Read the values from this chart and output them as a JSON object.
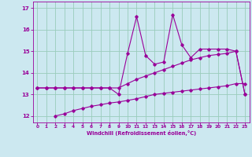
{
  "title": "",
  "xlabel": "Windchill (Refroidissement éolien,°C)",
  "ylabel": "",
  "xlim": [
    -0.5,
    23.5
  ],
  "ylim": [
    11.7,
    17.3
  ],
  "xticks": [
    0,
    1,
    2,
    3,
    4,
    5,
    6,
    7,
    8,
    9,
    10,
    11,
    12,
    13,
    14,
    15,
    16,
    17,
    18,
    19,
    20,
    21,
    22,
    23
  ],
  "yticks": [
    12,
    13,
    14,
    15,
    16,
    17
  ],
  "bg_color": "#cce8f0",
  "line_color": "#990099",
  "grid_color": "#99ccbb",
  "line1_x": [
    0,
    1,
    2,
    3,
    4,
    5,
    6,
    7,
    8,
    9,
    10,
    11,
    12,
    13,
    14,
    15,
    16,
    17,
    18,
    19,
    20,
    21,
    22,
    23
  ],
  "line1_y": [
    13.3,
    13.3,
    13.3,
    13.3,
    13.3,
    13.3,
    13.3,
    13.3,
    13.3,
    13.3,
    13.5,
    13.7,
    13.85,
    14.0,
    14.15,
    14.3,
    14.45,
    14.6,
    14.7,
    14.8,
    14.85,
    14.9,
    15.0,
    13.0
  ],
  "line2_x": [
    0,
    1,
    2,
    3,
    4,
    5,
    6,
    7,
    8,
    9,
    10,
    11,
    12,
    13,
    14,
    15,
    16,
    17,
    18,
    19,
    20,
    21,
    22,
    23
  ],
  "line2_y": [
    13.3,
    13.3,
    13.3,
    13.3,
    13.3,
    13.3,
    13.3,
    13.3,
    13.3,
    13.0,
    14.9,
    16.6,
    14.8,
    14.4,
    14.5,
    16.7,
    15.3,
    14.7,
    15.1,
    15.1,
    15.1,
    15.1,
    15.0,
    13.0
  ],
  "line3_x": [
    2,
    3,
    4,
    5,
    6,
    7,
    8,
    9,
    10,
    11,
    12,
    13,
    14,
    15,
    16,
    17,
    18,
    19,
    20,
    21,
    22,
    23
  ],
  "line3_y": [
    12.0,
    12.1,
    12.25,
    12.35,
    12.45,
    12.52,
    12.6,
    12.65,
    12.72,
    12.8,
    12.9,
    13.0,
    13.05,
    13.1,
    13.15,
    13.2,
    13.25,
    13.3,
    13.35,
    13.4,
    13.5,
    13.5
  ]
}
